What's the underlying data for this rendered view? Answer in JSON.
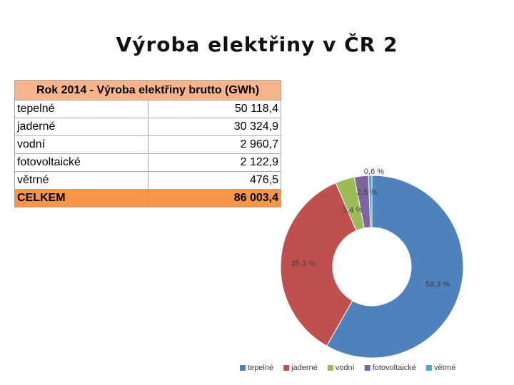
{
  "title": "Výroba elektřiny v ČR 2",
  "table": {
    "header": "Rok 2014 - Výroba elektřiny brutto (GWh)",
    "rows": [
      [
        "tepelné",
        "50 118,4"
      ],
      [
        "jaderné",
        "30 324,9"
      ],
      [
        "vodní",
        "2 960,7"
      ],
      [
        "fotovoltaické",
        "2 122,9"
      ],
      [
        "větrné",
        "476,5"
      ],
      [
        "CELKEM",
        "86 003,4"
      ]
    ]
  },
  "chart_data": {
    "type": "donut",
    "categories": [
      "tepelné",
      "jaderné",
      "vodní",
      "fotovoltaické",
      "větrné"
    ],
    "values": [
      58.3,
      35.3,
      3.4,
      2.5,
      0.6
    ],
    "value_labels": [
      "58,3 %",
      "35,3 %",
      "3,4 %",
      "2,5 %",
      "0,6 %"
    ],
    "colors": [
      "#4f81bd",
      "#c0504d",
      "#9bbb59",
      "#8064a2",
      "#4bacc6"
    ],
    "legend": "bottom"
  }
}
